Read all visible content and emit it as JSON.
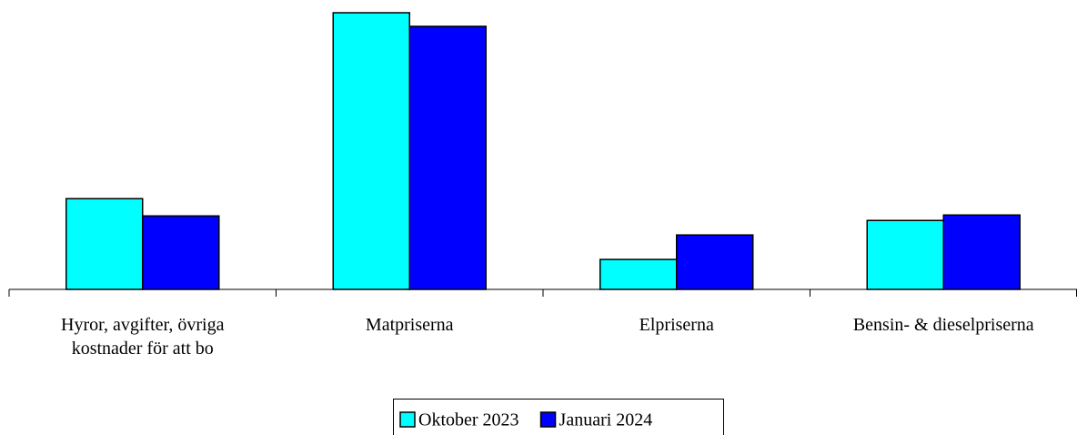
{
  "chart_data": {
    "type": "bar",
    "categories": [
      "Hyror, avgifter, övriga kostnader för att bo",
      "Matpriserna",
      "Elpriserna",
      "Bensin- & dieselpriserna"
    ],
    "series": [
      {
        "name": "Oktober 2023",
        "color": "#00ffff",
        "values": [
          20,
          61,
          6.6,
          15.2
        ]
      },
      {
        "name": "Januari 2024",
        "color": "#0000ff",
        "values": [
          16.2,
          58,
          12,
          16.4
        ]
      }
    ],
    "ylim": [
      0,
      61
    ],
    "legend": "bottom"
  }
}
